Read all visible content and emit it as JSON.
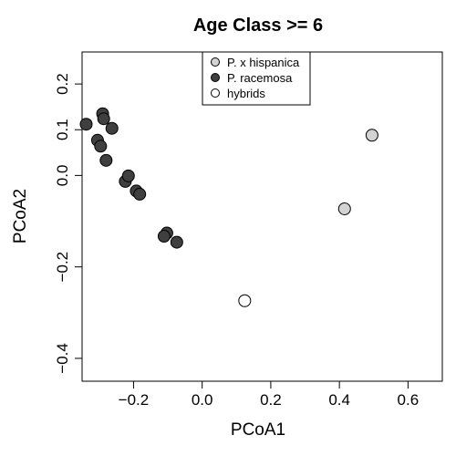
{
  "chart_data": {
    "type": "scatter",
    "title": "Age Class >= 6",
    "xlabel": "PCoA1",
    "ylabel": "PCoA2",
    "xlim": [
      -0.35,
      0.7
    ],
    "ylim": [
      -0.45,
      0.27
    ],
    "xticks": [
      -0.2,
      0.0,
      0.2,
      0.4,
      0.6
    ],
    "xtick_labels": [
      "−0.2",
      "0.0",
      "0.2",
      "0.4",
      "0.6"
    ],
    "yticks": [
      -0.4,
      -0.2,
      0.0,
      0.1,
      0.2
    ],
    "ytick_labels": [
      "−0.4",
      "−0.2",
      "0.0",
      "0.1",
      "0.2"
    ],
    "grid": false,
    "legend_position": "top-center",
    "series": [
      {
        "name": "P. x hispanica",
        "color": "#d3d3d3",
        "points": [
          [
            0.495,
            0.088
          ],
          [
            0.415,
            -0.073
          ]
        ]
      },
      {
        "name": "P. racemosa",
        "color": "#3f3f3f",
        "points": [
          [
            -0.338,
            0.112
          ],
          [
            -0.29,
            0.135
          ],
          [
            -0.287,
            0.124
          ],
          [
            -0.263,
            0.103
          ],
          [
            -0.305,
            0.077
          ],
          [
            -0.296,
            0.064
          ],
          [
            -0.28,
            0.033
          ],
          [
            -0.224,
            -0.013
          ],
          [
            -0.215,
            -0.001
          ],
          [
            -0.192,
            -0.034
          ],
          [
            -0.182,
            -0.041
          ],
          [
            -0.103,
            -0.126
          ],
          [
            -0.111,
            -0.133
          ],
          [
            -0.074,
            -0.146
          ]
        ]
      },
      {
        "name": "hybrids",
        "color": "#ffffff",
        "points": [
          [
            0.124,
            -0.274
          ]
        ]
      }
    ]
  }
}
